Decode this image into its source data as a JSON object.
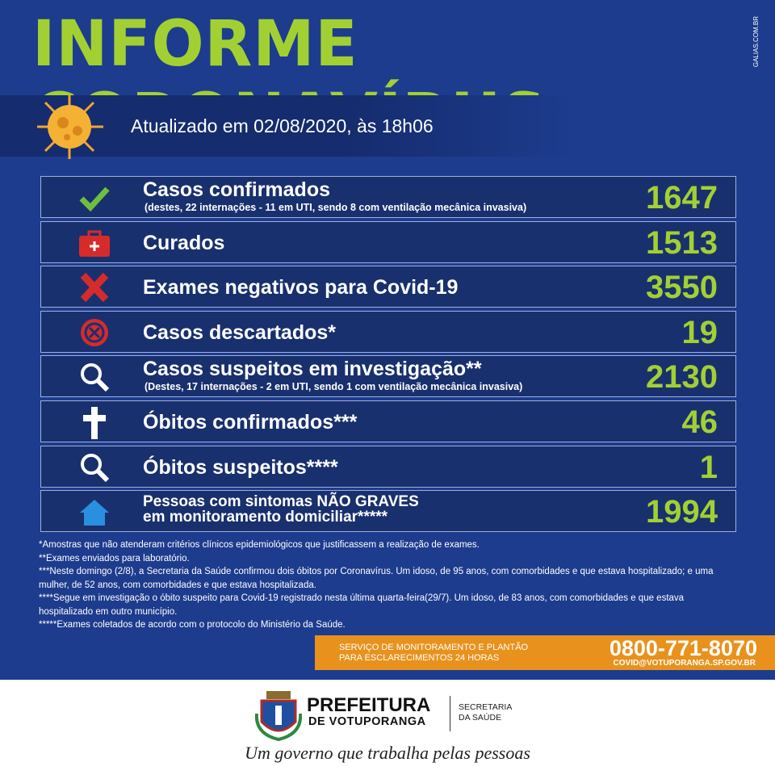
{
  "header": {
    "title": "INFORME CORONAVÍRUS",
    "credit": "GALIAS.COM.BR",
    "updated": "Atualizado em 02/08/2020, às 18h06"
  },
  "rows": [
    {
      "label": "Casos confirmados",
      "sub": "(destes, 22 internações - 11 em UTI, sendo 8 com ventilação mecânica invasiva)",
      "value": 1647
    },
    {
      "label": "Curados",
      "value": 1513
    },
    {
      "label": "Exames negativos para Covid-19",
      "value": 3550
    },
    {
      "label": "Casos descartados*",
      "value": 19
    },
    {
      "label": "Casos suspeitos em investigação**",
      "sub": "(Destes, 17 internações - 2 em UTI, sendo 1 com ventilação mecânica invasiva)",
      "value": 2130
    },
    {
      "label": "Óbitos confirmados***",
      "value": 46
    },
    {
      "label": "Óbitos suspeitos****",
      "value": 1
    },
    {
      "label": "Pessoas com sintomas NÃO GRAVES",
      "label2": "em monitoramento domiciliar*****",
      "value": 1994
    }
  ],
  "footnotes": [
    "*Amostras que não atenderam critérios clínicos epidemiológicos que justificassem a realização de exames.",
    "**Exames enviados para laboratório.",
    "***Neste domingo (2/8), a Secretaria da Saúde confirmou dois óbitos por Coronavírus. Um idoso, de 95 anos, com comorbidades e que estava hospitalizado; e uma mulher, de 52 anos, com comorbidades e que estava hospitalizada.",
    "****Segue em investigação o óbito suspeito para Covid-19 registrado nesta última quarta-feira(29/7). Um idoso, de 83 anos, com comorbidades e que estava hospitalizado em outro município.",
    "*****Exames coletados de acordo com o protocolo do Ministério da Saúde."
  ],
  "contact": {
    "line1": "SERVIÇO DE MONITORAMENTO E PLANTÃO",
    "line2": "PARA ESCLARECIMENTOS 24 HORAS",
    "phone": "0800-771-8070",
    "email": "COVID@VOTUPORANGA.SP.GOV.BR"
  },
  "footer": {
    "org": "PREFEITURA",
    "city": "DE VOTUPORANGA",
    "dept1": "SECRETARIA",
    "dept2": "DA SAÚDE",
    "slogan": "Um governo que trabalha pelas pessoas"
  }
}
